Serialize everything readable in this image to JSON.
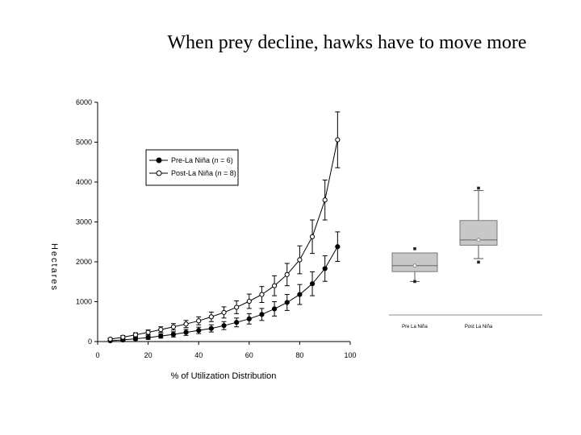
{
  "slide": {
    "title": "When prey decline, hawks have to move more"
  },
  "chart_data": [
    {
      "type": "line",
      "title": "",
      "xlabel": "% of Utilization Distribution",
      "ylabel": "Hectares",
      "xlim": [
        0,
        100
      ],
      "ylim": [
        0,
        6000
      ],
      "x_ticks": [
        "0",
        "20",
        "40",
        "60",
        "80",
        "100"
      ],
      "y_ticks": [
        "0",
        "1000",
        "2000",
        "3000",
        "4000",
        "5000",
        "6000"
      ],
      "grid": false,
      "legend_position": "upper-left",
      "x": [
        5,
        10,
        15,
        20,
        25,
        30,
        35,
        40,
        45,
        50,
        55,
        60,
        65,
        70,
        75,
        80,
        85,
        90,
        95
      ],
      "series": [
        {
          "name_prefix": "Pre-La Niña (",
          "name_n": "n",
          "name_suffix": " = 6)",
          "marker": "filled-circle",
          "values": [
            20,
            40,
            70,
            100,
            140,
            180,
            230,
            280,
            330,
            400,
            480,
            570,
            680,
            820,
            980,
            1180,
            1450,
            1830,
            2380
          ],
          "errors": [
            15,
            25,
            35,
            45,
            55,
            65,
            75,
            80,
            90,
            100,
            110,
            130,
            150,
            180,
            200,
            250,
            300,
            320,
            370
          ]
        },
        {
          "name_prefix": "Post-La Niña (",
          "name_n": "n",
          "name_suffix": " = 8)",
          "marker": "open-circle",
          "values": [
            60,
            110,
            170,
            230,
            300,
            370,
            440,
            520,
            620,
            730,
            860,
            1010,
            1180,
            1400,
            1680,
            2050,
            2630,
            3550,
            5060
          ],
          "errors": [
            30,
            40,
            50,
            60,
            70,
            80,
            90,
            100,
            120,
            140,
            160,
            180,
            200,
            250,
            280,
            350,
            420,
            500,
            700
          ]
        }
      ]
    },
    {
      "type": "box",
      "categories": [
        "Pre La Niña",
        "Post La Niña"
      ],
      "boxes": [
        {
          "whisker_low": 950,
          "q1": 1230,
          "median": 1400,
          "mean": 1400,
          "q3": 1760,
          "whisker_high": 1760,
          "outliers": [
            1880,
            950
          ]
        },
        {
          "whisker_low": 1600,
          "q1": 1980,
          "median": 2130,
          "mean": 2130,
          "q3": 2680,
          "whisker_high": 3530,
          "outliers": [
            3600,
            1500
          ]
        }
      ]
    }
  ]
}
